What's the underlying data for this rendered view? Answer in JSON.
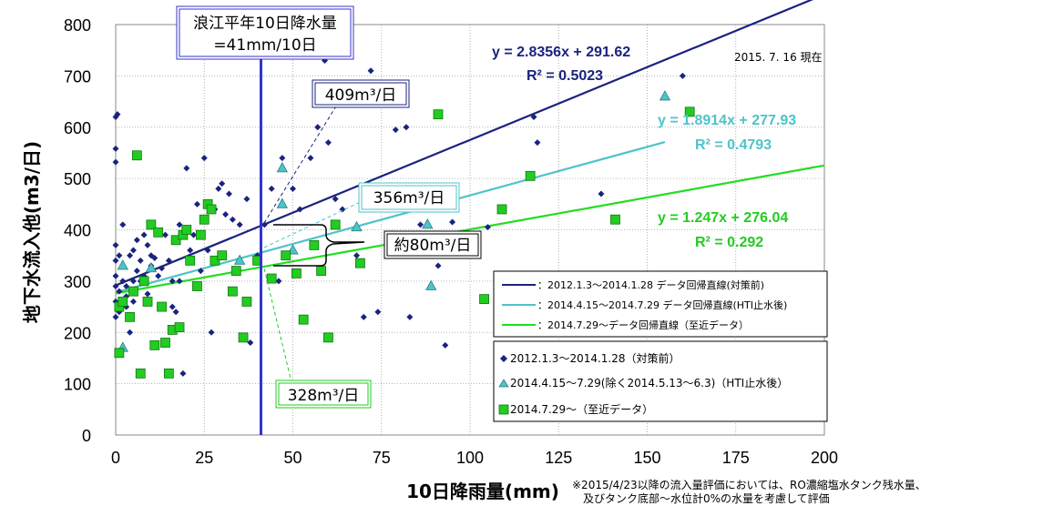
{
  "chart_data": {
    "type": "scatter",
    "xlabel": "10日降雨量(mm)",
    "ylabel": "地下水流入他(m3/日)",
    "xlim": [
      0,
      200
    ],
    "ylim": [
      0,
      800
    ],
    "x_ticks": [
      "0",
      "25",
      "50",
      "75",
      "100",
      "125",
      "150",
      "175",
      "200"
    ],
    "y_ticks": [
      "0",
      "100",
      "200",
      "300",
      "400",
      "500",
      "600",
      "700",
      "800"
    ],
    "grid": true,
    "legend_position": "bottom-right",
    "series": [
      {
        "name": "2012.1.3〜2014.1.28（対策前）",
        "marker": "diamond",
        "color": "#1a237e",
        "points": [
          [
            0,
            620
          ],
          [
            0.5,
            625
          ],
          [
            0,
            558
          ],
          [
            0,
            532
          ],
          [
            0,
            370
          ],
          [
            0,
            340
          ],
          [
            0,
            310
          ],
          [
            0,
            290
          ],
          [
            0,
            260
          ],
          [
            0,
            230
          ],
          [
            1,
            350
          ],
          [
            1,
            280
          ],
          [
            1,
            240
          ],
          [
            2,
            410
          ],
          [
            2,
            330
          ],
          [
            2,
            300
          ],
          [
            3,
            290
          ],
          [
            3,
            270
          ],
          [
            3,
            250
          ],
          [
            4,
            350
          ],
          [
            4,
            200
          ],
          [
            5,
            360
          ],
          [
            5,
            300
          ],
          [
            5,
            260
          ],
          [
            6,
            380
          ],
          [
            6,
            320
          ],
          [
            7,
            340
          ],
          [
            7,
            300
          ],
          [
            8,
            390
          ],
          [
            8,
            310
          ],
          [
            9,
            370
          ],
          [
            9,
            275
          ],
          [
            10,
            350
          ],
          [
            10,
            330
          ],
          [
            11,
            345
          ],
          [
            12,
            310
          ],
          [
            13,
            325
          ],
          [
            14,
            390
          ],
          [
            15,
            340
          ],
          [
            16,
            300
          ],
          [
            16,
            250
          ],
          [
            17,
            380
          ],
          [
            17,
            240
          ],
          [
            18,
            410
          ],
          [
            18,
            300
          ],
          [
            19,
            120
          ],
          [
            20,
            520
          ],
          [
            21,
            360
          ],
          [
            22,
            390
          ],
          [
            23,
            450
          ],
          [
            24,
            320
          ],
          [
            25,
            540
          ],
          [
            26,
            360
          ],
          [
            27,
            200
          ],
          [
            28,
            440
          ],
          [
            29,
            480
          ],
          [
            30,
            490
          ],
          [
            31,
            430
          ],
          [
            32,
            470
          ],
          [
            33,
            420
          ],
          [
            35,
            410
          ],
          [
            37,
            460
          ],
          [
            38,
            180
          ],
          [
            40,
            350
          ],
          [
            42,
            410
          ],
          [
            44,
            480
          ],
          [
            46,
            300
          ],
          [
            47,
            540
          ],
          [
            50,
            480
          ],
          [
            52,
            440
          ],
          [
            55,
            540
          ],
          [
            57,
            600
          ],
          [
            59,
            730
          ],
          [
            60,
            570
          ],
          [
            62,
            460
          ],
          [
            64,
            440
          ],
          [
            66,
            750
          ],
          [
            68,
            350
          ],
          [
            70,
            230
          ],
          [
            72,
            710
          ],
          [
            74,
            240
          ],
          [
            79,
            595
          ],
          [
            82,
            600
          ],
          [
            83,
            230
          ],
          [
            86,
            410
          ],
          [
            91,
            330
          ],
          [
            93,
            175
          ],
          [
            95,
            415
          ],
          [
            105,
            405
          ],
          [
            118,
            620
          ],
          [
            119,
            570
          ],
          [
            137,
            470
          ],
          [
            160,
            700
          ]
        ]
      },
      {
        "name": "2014.4.15〜7.29(除く2014.5.13〜6.3)（HTI止水後）",
        "marker": "triangle",
        "color": "#4fc3c7",
        "points": [
          [
            2,
            330
          ],
          [
            2,
            170
          ],
          [
            10,
            325
          ],
          [
            35,
            340
          ],
          [
            47,
            520
          ],
          [
            47,
            450
          ],
          [
            50,
            360
          ],
          [
            68,
            405
          ],
          [
            88,
            410
          ],
          [
            89,
            290
          ],
          [
            155,
            660
          ]
        ]
      },
      {
        "name": "2014.7.29〜（至近データ）",
        "marker": "square",
        "color": "#22cc22",
        "points": [
          [
            1,
            250
          ],
          [
            1,
            160
          ],
          [
            2,
            260
          ],
          [
            4,
            230
          ],
          [
            5,
            280
          ],
          [
            6,
            545
          ],
          [
            7,
            120
          ],
          [
            8,
            300
          ],
          [
            9,
            260
          ],
          [
            10,
            410
          ],
          [
            11,
            175
          ],
          [
            12,
            395
          ],
          [
            13,
            250
          ],
          [
            14,
            180
          ],
          [
            15,
            120
          ],
          [
            16,
            205
          ],
          [
            17,
            380
          ],
          [
            18,
            210
          ],
          [
            19,
            390
          ],
          [
            20,
            400
          ],
          [
            21,
            340
          ],
          [
            23,
            290
          ],
          [
            24,
            390
          ],
          [
            25,
            420
          ],
          [
            26,
            450
          ],
          [
            27,
            440
          ],
          [
            28,
            340
          ],
          [
            30,
            350
          ],
          [
            33,
            280
          ],
          [
            34,
            320
          ],
          [
            36,
            190
          ],
          [
            37,
            260
          ],
          [
            40,
            340
          ],
          [
            44,
            305
          ],
          [
            48,
            350
          ],
          [
            51,
            315
          ],
          [
            53,
            225
          ],
          [
            56,
            370
          ],
          [
            58,
            320
          ],
          [
            60,
            190
          ],
          [
            62,
            410
          ],
          [
            69,
            335
          ],
          [
            70,
            460
          ],
          [
            91,
            625
          ],
          [
            104,
            265
          ],
          [
            109,
            440
          ],
          [
            117,
            505
          ],
          [
            141,
            420
          ],
          [
            162,
            630
          ]
        ]
      }
    ],
    "regression_lines": [
      {
        "name": "：2012.1.3〜2014.1.28 データ回帰直線(対策前)",
        "equation": "y = 2.8356x + 291.62",
        "r2": "R² = 0.5023",
        "slope": 2.8356,
        "intercept": 291.62,
        "x_range": [
          0,
          200
        ],
        "color": "#1a237e"
      },
      {
        "name": "：2014.4.15〜2014.7.29 データ回帰直線(HTI止水後)",
        "equation": "y = 1.8914x + 277.93",
        "r2": "R² = 0.4793",
        "slope": 1.8914,
        "intercept": 277.93,
        "x_range": [
          0,
          155
        ],
        "color": "#4fc3c7"
      },
      {
        "name": "：2014.7.29〜データ回帰直線（至近データ）",
        "equation": "y = 1.247x + 276.04",
        "r2": "R² = 0.292",
        "slope": 1.247,
        "intercept": 276.04,
        "x_range": [
          0,
          200
        ],
        "color": "#22dd22"
      }
    ],
    "vertical_marker": {
      "x": 41,
      "color": "#3333cc",
      "label_line1": "浪江平年10日降水量",
      "label_line2": "=41mm/10日"
    },
    "annotations": {
      "date_note": "2015. 7. 16 現在",
      "callout_pre": "409m³/日",
      "callout_hti": "356m³/日",
      "callout_recent": "328m³/日",
      "callout_diff": "約80m³/日"
    },
    "footnote_line1": "※2015/4/23以降の流入量評価においては、RO濃縮塩水タンク残水量、",
    "footnote_line2": "及びタンク底部〜水位計0%の水量を考慮して評価"
  }
}
